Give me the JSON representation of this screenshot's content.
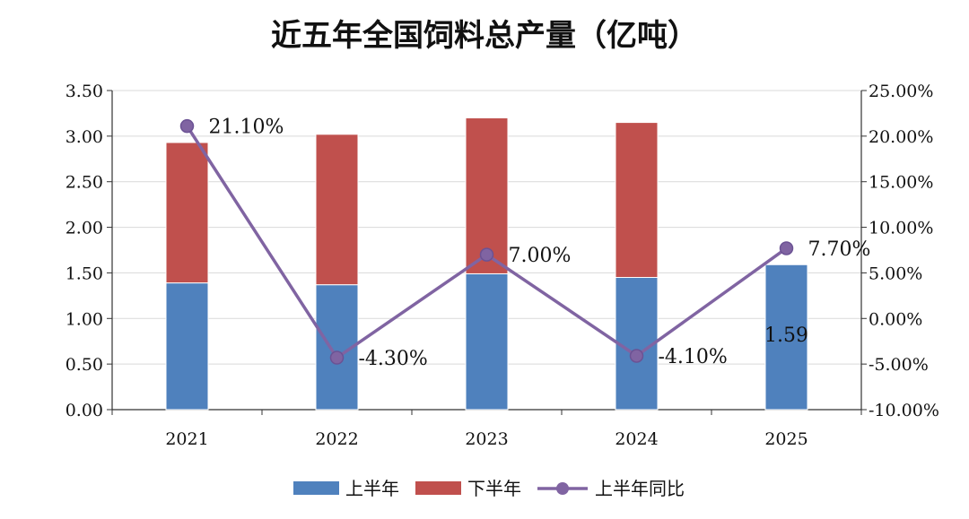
{
  "chart_data": {
    "type": "bar",
    "title": "近五年全国饲料总产量（亿吨）",
    "categories": [
      "2021",
      "2022",
      "2023",
      "2024",
      "2025"
    ],
    "series": [
      {
        "name": "上半年",
        "kind": "bar",
        "axis": "left",
        "color": "#4f81bd",
        "values": [
          1.39,
          1.37,
          1.49,
          1.45,
          1.59
        ]
      },
      {
        "name": "下半年",
        "kind": "bar",
        "axis": "left",
        "color": "#c0504d",
        "values": [
          1.54,
          1.65,
          1.71,
          1.7,
          null
        ]
      },
      {
        "name": "上半年同比",
        "kind": "line",
        "axis": "right",
        "color": "#8064a2",
        "values": [
          21.1,
          -4.3,
          7.0,
          -4.1,
          7.7
        ]
      }
    ],
    "left_axis": {
      "min": 0,
      "max": 3.5,
      "ticks": [
        "0.00",
        "0.50",
        "1.00",
        "1.50",
        "2.00",
        "2.50",
        "3.00",
        "3.50"
      ]
    },
    "right_axis": {
      "min": -10,
      "max": 25,
      "ticks": [
        "-10.00%",
        "-5.00%",
        "0.00%",
        "5.00%",
        "10.00%",
        "15.00%",
        "20.00%",
        "25.00%"
      ]
    },
    "line_labels": [
      "21.10%",
      "-4.30%",
      "7.00%",
      "-4.10%",
      "7.70%"
    ],
    "bar_labels": [
      {
        "category_index": 4,
        "text": "1.59"
      }
    ],
    "grid": true,
    "legend_position": "bottom"
  }
}
